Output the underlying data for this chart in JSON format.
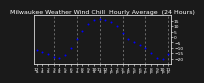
{
  "title": "Milwaukee Weather Wind Chill  Hourly Average  (24 Hours)",
  "hours": [
    0,
    1,
    2,
    3,
    4,
    5,
    6,
    7,
    8,
    9,
    10,
    11,
    12,
    13,
    14,
    15,
    16,
    17,
    18,
    19,
    20,
    21,
    22,
    23
  ],
  "wind_chill": [
    -12,
    -14,
    -16,
    -18,
    -19,
    -17,
    -10,
    -2,
    6,
    12,
    16,
    17,
    16,
    14,
    10,
    4,
    -2,
    -5,
    -7,
    -10,
    -15,
    -19,
    -20,
    -16
  ],
  "dot_color": "#0000ff",
  "bg_color": "#1a1a1a",
  "plot_bg_color": "#1a1a1a",
  "grid_color": "#888888",
  "text_color": "#ffffff",
  "ylim": [
    -25,
    20
  ],
  "yticks": [
    -20,
    -15,
    -10,
    -5,
    0,
    5,
    10,
    15
  ],
  "xlim": [
    -0.5,
    23.5
  ],
  "vline_positions": [
    3,
    7,
    11,
    15,
    19,
    23
  ],
  "title_fontsize": 4.5,
  "tick_fontsize": 3.2,
  "dot_size": 2.0,
  "hour_labels": [
    "12",
    "1",
    "2",
    "3",
    "4",
    "5",
    "6",
    "7",
    "2",
    "1",
    "5",
    "3",
    "7",
    "1",
    "5",
    "7",
    "2",
    "5",
    "7",
    "2",
    "3",
    "5",
    "1",
    "5"
  ],
  "hour_labels2": [
    "a",
    "a",
    "a",
    "a",
    "a",
    "a",
    "a",
    "a",
    "p",
    "p",
    "p",
    "p",
    "p",
    "p",
    "p",
    "p",
    "p",
    "p",
    "p",
    "p",
    "p",
    "p",
    "p",
    "p"
  ]
}
